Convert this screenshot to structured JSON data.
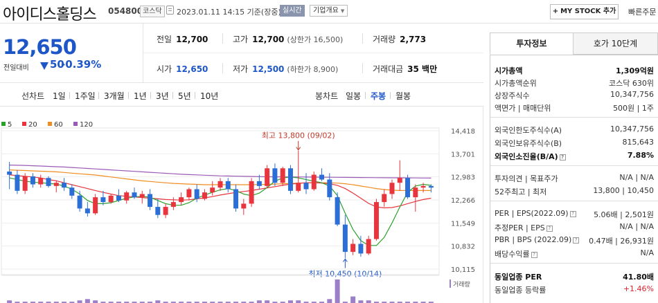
{
  "header": {
    "company": "아이디스홀딩스",
    "code": "054800",
    "market": "코스닥",
    "datetime": "2023.01.11 14:15  기준(장중)",
    "realtime": "실시간",
    "overview": "기업개요",
    "mystock": "MY STOCK 추가",
    "quick": "빠른주문"
  },
  "price": {
    "current": "12,650",
    "change_label": "전일대비",
    "change": "50",
    "change_pct": "-0.39%"
  },
  "quotes": {
    "prev_label": "전일",
    "prev": "12,700",
    "high_label": "고가",
    "high": "12,700",
    "upper_limit": "(상한가 16,500)",
    "volume_label": "거래량",
    "volume": "2,773",
    "open_label": "시가",
    "open": "12,650",
    "low_label": "저가",
    "low": "12,500",
    "lower_limit": "(하한가 8,900)",
    "amount_label": "거래대금",
    "amount": "35 백만"
  },
  "periods": {
    "line_label": "선차트",
    "line": [
      "1일",
      "1주일",
      "3개월",
      "1년",
      "3년",
      "5년",
      "10년"
    ],
    "candle_label": "봉차트",
    "candle": [
      "일봉",
      "주봉",
      "월봉"
    ],
    "candle_active": "주봉"
  },
  "chart_data": {
    "type": "candlestick",
    "legend": [
      "5",
      "20",
      "60",
      "120"
    ],
    "legend_colors": [
      "#2ca02c",
      "#e8343c",
      "#f08c1e",
      "#9b59b6"
    ],
    "y_ticks": [
      "14,418",
      "13,701",
      "12,983",
      "12,266",
      "11,549",
      "10,832",
      "10,115"
    ],
    "ylim": [
      10115,
      14418
    ],
    "high_annotation": "최고 13,800 (09/02)",
    "low_annotation": "최저 10,450 (10/14)",
    "volume_label": "거래량",
    "up_color": "#e8343c",
    "down_color": "#2b6ed6",
    "candles": [
      [
        13150,
        13450,
        12600,
        13050
      ],
      [
        13050,
        13200,
        12450,
        12550
      ],
      [
        12550,
        13100,
        12450,
        13000
      ],
      [
        13000,
        13100,
        12650,
        12750
      ],
      [
        12750,
        13050,
        12650,
        12950
      ],
      [
        12950,
        13000,
        12650,
        12700
      ],
      [
        12700,
        12850,
        12500,
        12800
      ],
      [
        12800,
        12950,
        12550,
        12650
      ],
      [
        12650,
        12750,
        12300,
        12400
      ],
      [
        12400,
        12550,
        11900,
        12000
      ],
      [
        12000,
        12200,
        11750,
        11850
      ],
      [
        11850,
        12450,
        11800,
        12350
      ],
      [
        12350,
        12550,
        12100,
        12200
      ],
      [
        12200,
        12450,
        12150,
        12400
      ],
      [
        12400,
        12600,
        12200,
        12250
      ],
      [
        12250,
        12550,
        12150,
        12500
      ],
      [
        12500,
        12650,
        12300,
        12350
      ],
      [
        12350,
        12550,
        12150,
        12450
      ],
      [
        12450,
        12600,
        11950,
        12050
      ],
      [
        12050,
        12300,
        11700,
        11800
      ],
      [
        11800,
        12150,
        11700,
        12050
      ],
      [
        12050,
        12350,
        11950,
        12200
      ],
      [
        12200,
        12500,
        12100,
        12350
      ],
      [
        12350,
        12650,
        12250,
        12600
      ],
      [
        12600,
        12750,
        12200,
        12300
      ],
      [
        12300,
        12600,
        12250,
        12500
      ],
      [
        12500,
        12850,
        12400,
        12650
      ],
      [
        12650,
        12950,
        12550,
        12850
      ],
      [
        12850,
        12950,
        12500,
        12600
      ],
      [
        12600,
        12750,
        11900,
        12000
      ],
      [
        12000,
        12300,
        11800,
        12150
      ],
      [
        12150,
        12950,
        12050,
        12850
      ],
      [
        12850,
        13050,
        12600,
        12700
      ],
      [
        12700,
        13350,
        12650,
        13250
      ],
      [
        13250,
        13400,
        12700,
        12800
      ],
      [
        12800,
        13300,
        12700,
        13250
      ],
      [
        13250,
        13350,
        12450,
        12550
      ],
      [
        12550,
        13800,
        12500,
        12800
      ],
      [
        12800,
        13100,
        12450,
        12600
      ],
      [
        12600,
        13150,
        12550,
        13050
      ],
      [
        13050,
        13250,
        12850,
        12900
      ],
      [
        12900,
        13100,
        12250,
        12350
      ],
      [
        12350,
        12500,
        11450,
        11500
      ],
      [
        11500,
        11800,
        10450,
        10650
      ],
      [
        10650,
        11050,
        10550,
        10900
      ],
      [
        10900,
        11150,
        10500,
        10600
      ],
      [
        10600,
        11150,
        10550,
        11050
      ],
      [
        11050,
        12300,
        11000,
        12200
      ],
      [
        12200,
        12600,
        12050,
        12450
      ],
      [
        12450,
        12900,
        12300,
        12800
      ],
      [
        12800,
        13500,
        12550,
        12950
      ],
      [
        12950,
        13050,
        12300,
        12350
      ],
      [
        12350,
        12750,
        11900,
        12650
      ],
      [
        12650,
        12800,
        12500,
        12700
      ],
      [
        12700,
        12750,
        12500,
        12650
      ]
    ],
    "volumes": [
      2,
      1,
      1,
      1,
      1,
      1,
      1,
      1,
      1,
      2,
      3,
      2,
      1,
      1,
      1,
      1,
      1,
      1,
      1,
      2,
      1,
      1,
      1,
      1,
      1,
      1,
      1,
      1,
      1,
      1,
      1,
      1,
      2,
      2,
      1,
      1,
      2,
      2,
      1,
      1,
      1,
      3,
      18,
      1,
      5,
      2,
      2,
      1,
      1,
      1,
      1,
      1,
      1,
      1,
      1
    ],
    "ma5": [
      12950,
      12900,
      12850,
      12820,
      12800,
      12780,
      12760,
      12700,
      12600,
      12450,
      12250,
      12150,
      12150,
      12180,
      12250,
      12320,
      12360,
      12380,
      12350,
      12250,
      12150,
      12100,
      12100,
      12180,
      12320,
      12420,
      12500,
      12580,
      12620,
      12560,
      12450,
      12400,
      12480,
      12650,
      12850,
      12950,
      12980,
      12950,
      12900,
      12850,
      12800,
      12700,
      12400,
      11850,
      11350,
      11000,
      10850,
      10850,
      11100,
      11550,
      12050,
      12500,
      12700,
      12750,
      12720
    ],
    "ma20": [
      13050,
      13020,
      13000,
      12980,
      12950,
      12900,
      12860,
      12800,
      12740,
      12680,
      12620,
      12560,
      12500,
      12450,
      12400,
      12380,
      12360,
      12340,
      12320,
      12300,
      12280,
      12270,
      12260,
      12270,
      12300,
      12330,
      12370,
      12420,
      12460,
      12500,
      12530,
      12560,
      12600,
      12640,
      12680,
      12720,
      12760,
      12780,
      12800,
      12800,
      12790,
      12770,
      12720,
      12620,
      12480,
      12320,
      12160,
      12050,
      12020,
      12030,
      12080,
      12150,
      12220,
      12280,
      12320
    ],
    "ma60": [
      13200,
      13190,
      13180,
      13170,
      13160,
      13150,
      13140,
      13120,
      13100,
      13080,
      13060,
      13040,
      13010,
      12980,
      12950,
      12920,
      12890,
      12860,
      12840,
      12820,
      12800,
      12780,
      12770,
      12760,
      12750,
      12740,
      12740,
      12740,
      12740,
      12740,
      12740,
      12740,
      12745,
      12750,
      12760,
      12770,
      12780,
      12790,
      12800,
      12800,
      12800,
      12800,
      12790,
      12770,
      12740,
      12700,
      12660,
      12620,
      12590,
      12570,
      12560,
      12560,
      12560,
      12560,
      12560
    ],
    "ma120": [
      13350,
      13345,
      13340,
      13330,
      13320,
      13310,
      13300,
      13290,
      13275,
      13260,
      13245,
      13230,
      13215,
      13200,
      13185,
      13170,
      13155,
      13140,
      13125,
      13110,
      13095,
      13080,
      13065,
      13055,
      13045,
      13035,
      13025,
      13015,
      13010,
      13005,
      13000,
      12995,
      12990,
      12988,
      12986,
      12984,
      12982,
      12980,
      12978,
      12976,
      12974,
      12972,
      12970,
      12968,
      12966,
      12964,
      12962,
      12960,
      12958,
      12956,
      12954,
      12952,
      12950,
      12948,
      12946
    ]
  },
  "right": {
    "tab_invest": "투자정보",
    "tab_orderbook": "호가 10단계",
    "market_cap_label": "시가총액",
    "market_cap": "1,309억원",
    "cap_rank_label": "시가총액순위",
    "cap_rank": "코스닥 630위",
    "shares_label": "상장주식수",
    "shares": "10,347,756",
    "par_label": "액면가 | 매매단위",
    "par": "500원 | 1주",
    "foreign_limit_label": "외국인한도주식수(A)",
    "foreign_limit": "10,347,756",
    "foreign_hold_label": "외국인보유주식수(B)",
    "foreign_hold": "815,643",
    "foreign_ratio_label": "외국인소진율(B/A)",
    "foreign_ratio": "7.88%",
    "opinion_label": "투자의견 | 목표주가",
    "opinion": "N/A | N/A",
    "week52_label": "52주최고 | 최저",
    "week52": "13,800 | 10,450",
    "per_label": "PER | EPS(2022.09)",
    "per": "5.06배 | 2,501원",
    "eper_label": "추정PER | EPS",
    "eper": "N/A | N/A",
    "pbr_label": "PBR | BPS (2022.09)",
    "pbr": "0.47배 | 26,931원",
    "div_label": "배당수익률",
    "div": "N/A",
    "sector_per_label": "동일업종 PER",
    "sector_per": "41.80배",
    "sector_rate_label": "동일업종 등락률",
    "sector_rate": "+1.46%"
  }
}
